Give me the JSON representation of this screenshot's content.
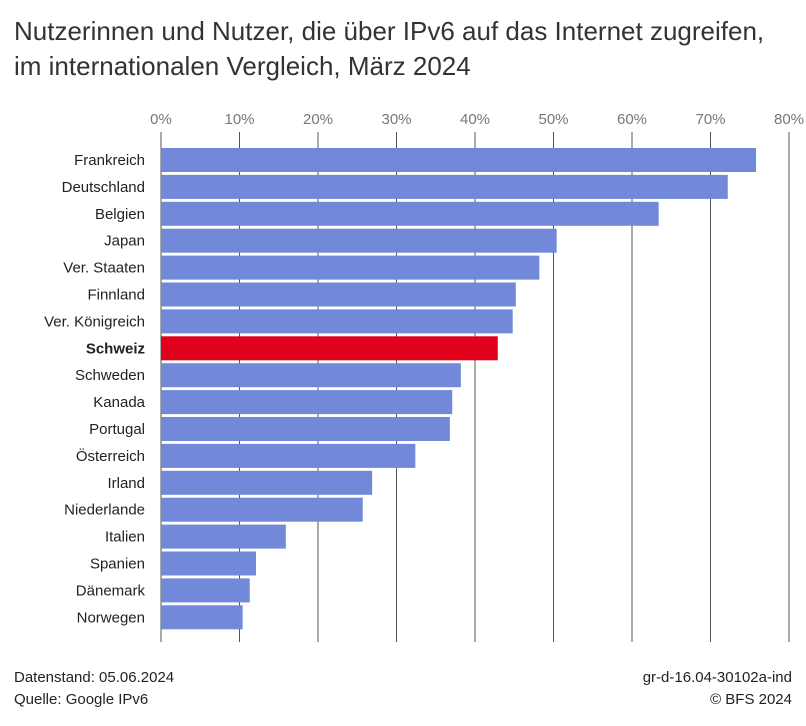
{
  "chart_data": {
    "type": "bar",
    "orientation": "horizontal",
    "title": "Nutzerinnen und Nutzer, die über IPv6 auf das Internet zugreifen, im internationalen Vergleich, März 2024",
    "xlabel": "",
    "ylabel": "",
    "xlim": [
      0,
      80
    ],
    "ticks": [
      "0%",
      "10%",
      "20%",
      "30%",
      "40%",
      "50%",
      "60%",
      "70%",
      "80%"
    ],
    "tick_values": [
      0,
      10,
      20,
      30,
      40,
      50,
      60,
      70,
      80
    ],
    "grid": true,
    "categories": [
      "Frankreich",
      "Deutschland",
      "Belgien",
      "Japan",
      "Ver. Staaten",
      "Finnland",
      "Ver. Königreich",
      "Schweiz",
      "Schweden",
      "Kanada",
      "Portugal",
      "Österreich",
      "Irland",
      "Niederlande",
      "Italien",
      "Spanien",
      "Dänemark",
      "Norwegen"
    ],
    "values": [
      75.8,
      72.2,
      63.4,
      50.4,
      48.2,
      45.2,
      44.8,
      42.9,
      38.2,
      37.1,
      36.8,
      32.4,
      26.9,
      25.7,
      15.9,
      12.1,
      11.3,
      10.4
    ],
    "highlight": "Schweiz",
    "colors": {
      "bar": "#7189d8",
      "highlight": "#e0001b",
      "grid": "#555555"
    }
  },
  "footer": {
    "date": "Datenstand: 05.06.2024",
    "source": "Quelle: Google IPv6",
    "code": "gr-d-16.04-30102a-ind",
    "copyright": "© BFS 2024"
  }
}
